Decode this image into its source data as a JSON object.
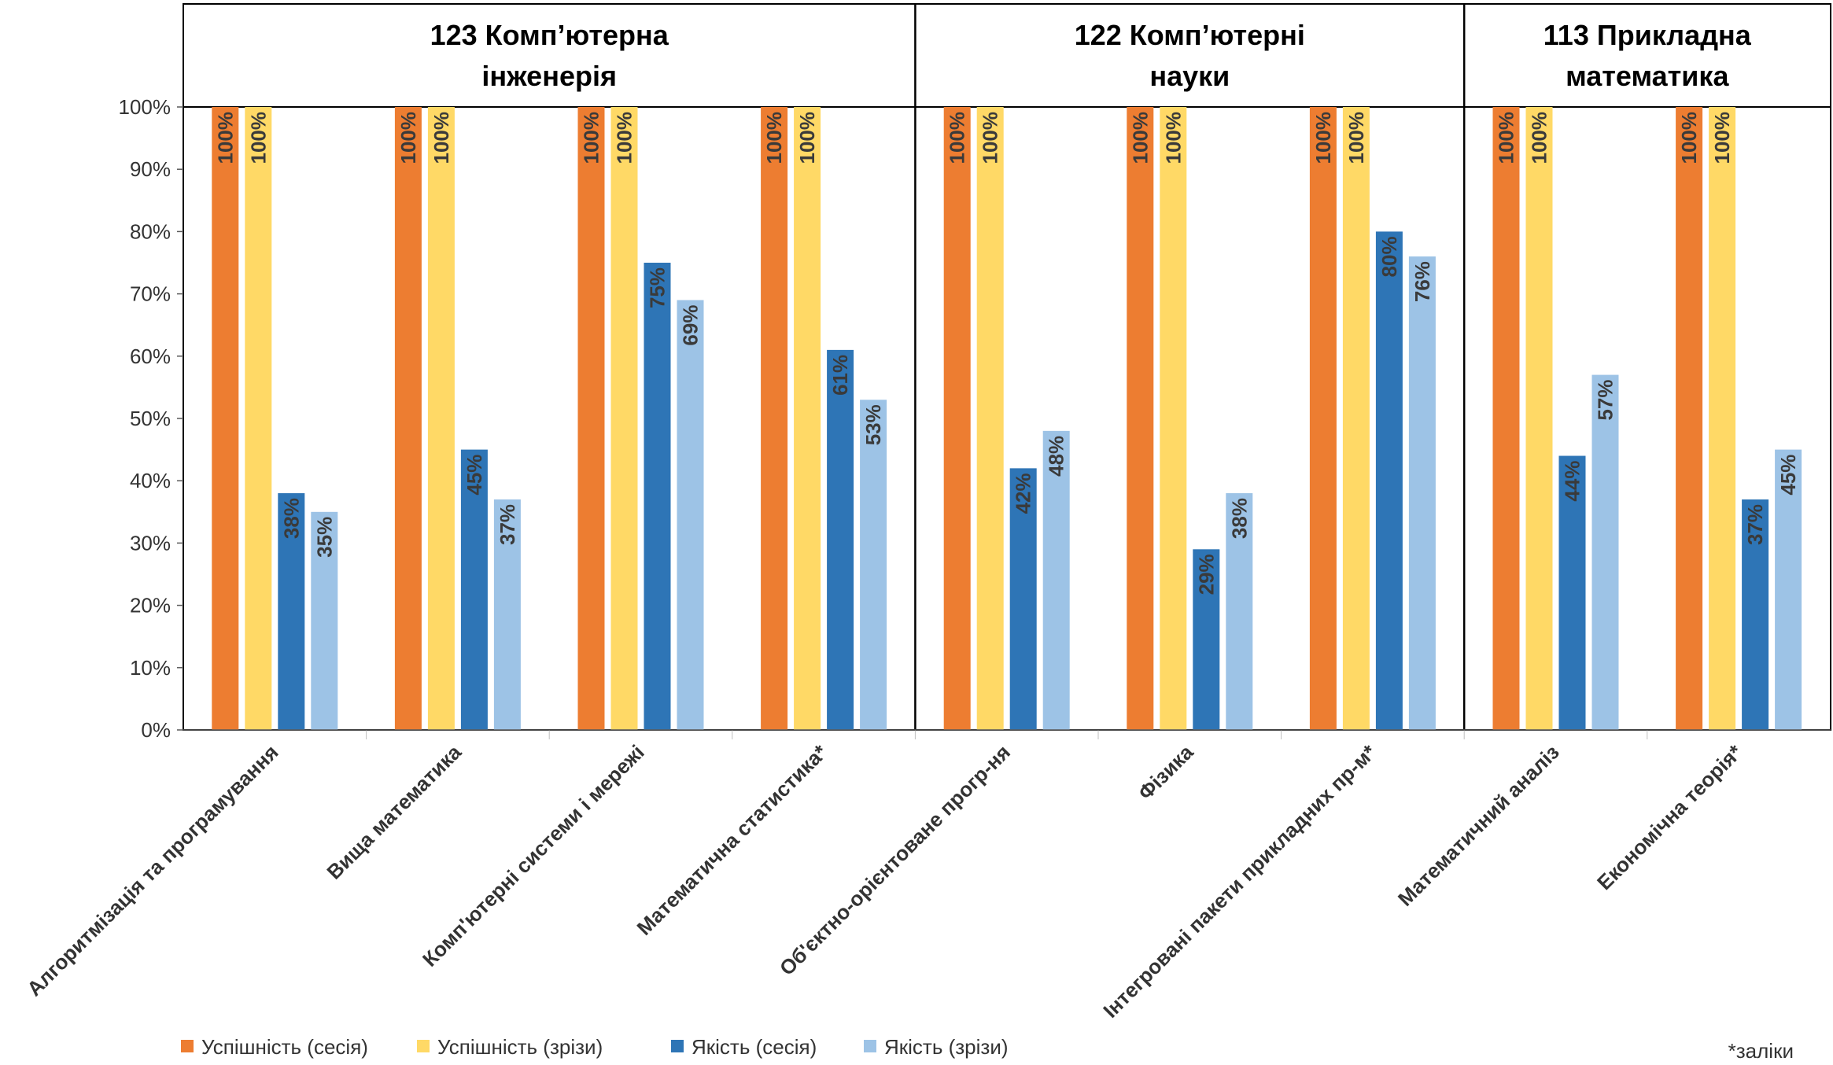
{
  "chart_data": {
    "type": "bar",
    "title": "",
    "xlabel": "",
    "ylabel": "",
    "ylim": [
      0,
      100
    ],
    "yticks": [
      "0%",
      "10%",
      "20%",
      "30%",
      "40%",
      "50%",
      "60%",
      "70%",
      "80%",
      "90%",
      "100%"
    ],
    "grid": false,
    "legend_position": "bottom-left",
    "groups": [
      {
        "title_lines": [
          "123 Комп’ютерна",
          "інженерія"
        ],
        "categories": [
          "Алгоритмізація та програмування",
          "Вища математика",
          "Комп'ютерні системи і мережі",
          "Математична статистика*"
        ]
      },
      {
        "title_lines": [
          "122 Комп’ютерні",
          "науки"
        ],
        "categories": [
          "Об'єктно-орієнтоване прогр-ня",
          "Фізика",
          "Інтегровані пакети прикладних пр-м*"
        ]
      },
      {
        "title_lines": [
          "113 Прикладна",
          "математика"
        ],
        "categories": [
          "Математичний аналіз",
          "Економічна теорія*"
        ]
      }
    ],
    "categories": [
      "Алгоритмізація та програмування",
      "Вища математика",
      "Комп'ютерні системи і мережі",
      "Математична статистика*",
      "Об'єктно-орієнтоване прогр-ня",
      "Фізика",
      "Інтегровані пакети прикладних пр-м*",
      "Математичний аналіз",
      "Економічна теорія*"
    ],
    "series": [
      {
        "name": "Успішність (сесія)",
        "color": "#ED7D31",
        "values": [
          100,
          100,
          100,
          100,
          100,
          100,
          100,
          100,
          100
        ],
        "labels": [
          "100%",
          "100%",
          "100%",
          "100%",
          "100%",
          "100%",
          "100%",
          "100%",
          "100%"
        ]
      },
      {
        "name": "Успішність (зрізи)",
        "color": "#FFD966",
        "values": [
          100,
          100,
          100,
          100,
          100,
          100,
          100,
          100,
          100
        ],
        "labels": [
          "100%",
          "100%",
          "100%",
          "100%",
          "100%",
          "100%",
          "100%",
          "100%",
          "100%"
        ]
      },
      {
        "name": "Якість (сесія)",
        "color": "#2E75B6",
        "values": [
          38,
          45,
          75,
          61,
          42,
          29,
          80,
          44,
          37
        ],
        "labels": [
          "38%",
          "45%",
          "75%",
          "61%",
          "42%",
          "29%",
          "80%",
          "44%",
          "37%"
        ]
      },
      {
        "name": "Якість (зрізи)",
        "color": "#9DC3E6",
        "values": [
          35,
          37,
          69,
          53,
          48,
          38,
          76,
          57,
          45
        ],
        "labels": [
          "35%",
          "37%",
          "69%",
          "53%",
          "48%",
          "38%",
          "76%",
          "57%",
          "45%"
        ]
      }
    ],
    "note": "*заліки"
  }
}
